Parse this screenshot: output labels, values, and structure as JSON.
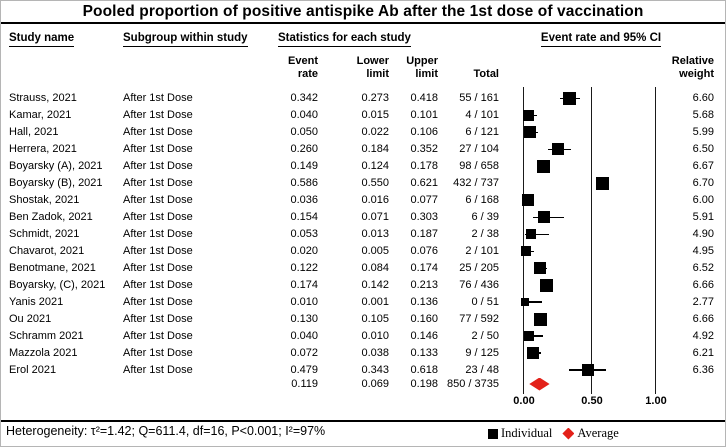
{
  "title": "Pooled proportion of positive antispike Ab after the 1st dose of vaccination",
  "columns": {
    "study": "Study name",
    "subgroup": "Subgroup within study",
    "stats": "Statistics for each study",
    "event_ci": "Event rate and 95% CI",
    "event_rate_header": "Event\nrate",
    "lower_limit_header": "Lower\nlimit",
    "upper_limit_header": "Upper\nlimit",
    "total_header": "Total",
    "relative_weight_header": "Relative\nweight"
  },
  "chart_data": {
    "type": "forest",
    "axis": {
      "labels": [
        "0.00",
        "0.50",
        "1.00"
      ],
      "ticks": [
        0.0,
        0.5,
        1.0
      ],
      "xlim": [
        -0.13,
        1.5
      ]
    },
    "legend": {
      "individual": "Individual",
      "average": "Average"
    },
    "studies": [
      {
        "name": "Strauss, 2021",
        "subgroup": "After 1st Dose",
        "event_rate": "0.342",
        "lower": "0.273",
        "upper": "0.418",
        "total": "55 / 161",
        "weight": "6.60"
      },
      {
        "name": "Kamar, 2021",
        "subgroup": "After 1st Dose",
        "event_rate": "0.040",
        "lower": "0.015",
        "upper": "0.101",
        "total": "4 / 101",
        "weight": "5.68"
      },
      {
        "name": "Hall, 2021",
        "subgroup": "After 1st Dose",
        "event_rate": "0.050",
        "lower": "0.022",
        "upper": "0.106",
        "total": "6 / 121",
        "weight": "5.99"
      },
      {
        "name": "Herrera, 2021",
        "subgroup": "After 1st Dose",
        "event_rate": "0.260",
        "lower": "0.184",
        "upper": "0.352",
        "total": "27 / 104",
        "weight": "6.50"
      },
      {
        "name": "Boyarsky (A), 2021",
        "subgroup": "After 1st Dose",
        "event_rate": "0.149",
        "lower": "0.124",
        "upper": "0.178",
        "total": "98 / 658",
        "weight": "6.67"
      },
      {
        "name": "Boyarsky (B), 2021",
        "subgroup": "After 1st Dose",
        "event_rate": "0.586",
        "lower": "0.550",
        "upper": "0.621",
        "total": "432 / 737",
        "weight": "6.70"
      },
      {
        "name": "Shostak, 2021",
        "subgroup": "After 1st Dose",
        "event_rate": "0.036",
        "lower": "0.016",
        "upper": "0.077",
        "total": "6 / 168",
        "weight": "6.00"
      },
      {
        "name": "Ben Zadok, 2021",
        "subgroup": "After 1st Dose",
        "event_rate": "0.154",
        "lower": "0.071",
        "upper": "0.303",
        "total": "6 / 39",
        "weight": "5.91"
      },
      {
        "name": "Schmidt, 2021",
        "subgroup": "After 1st Dose",
        "event_rate": "0.053",
        "lower": "0.013",
        "upper": "0.187",
        "total": "2 / 38",
        "weight": "4.90"
      },
      {
        "name": "Chavarot, 2021",
        "subgroup": "After 1st Dose",
        "event_rate": "0.020",
        "lower": "0.005",
        "upper": "0.076",
        "total": "2 / 101",
        "weight": "4.95"
      },
      {
        "name": "Benotmane, 2021",
        "subgroup": "After 1st Dose",
        "event_rate": "0.122",
        "lower": "0.084",
        "upper": "0.174",
        "total": "25 / 205",
        "weight": "6.52"
      },
      {
        "name": "Boyarsky, (C), 2021",
        "subgroup": "After 1st Dose",
        "event_rate": "0.174",
        "lower": "0.142",
        "upper": "0.213",
        "total": "76 / 436",
        "weight": "6.66"
      },
      {
        "name": "Yanis 2021",
        "subgroup": "After 1st Dose",
        "event_rate": "0.010",
        "lower": "0.001",
        "upper": "0.136",
        "total": "0 / 51",
        "weight": "2.77"
      },
      {
        "name": "Ou 2021",
        "subgroup": "After 1st Dose",
        "event_rate": "0.130",
        "lower": "0.105",
        "upper": "0.160",
        "total": "77 / 592",
        "weight": "6.66"
      },
      {
        "name": "Schramm 2021",
        "subgroup": "After 1st Dose",
        "event_rate": "0.040",
        "lower": "0.010",
        "upper": "0.146",
        "total": "2 / 50",
        "weight": "4.92"
      },
      {
        "name": "Mazzola 2021",
        "subgroup": "After 1st Dose",
        "event_rate": "0.072",
        "lower": "0.038",
        "upper": "0.133",
        "total": "9 / 125",
        "weight": "6.21"
      },
      {
        "name": "Erol 2021",
        "subgroup": "After 1st Dose",
        "event_rate": "0.479",
        "lower": "0.343",
        "upper": "0.618",
        "total": "23 / 48",
        "weight": "6.36"
      }
    ],
    "summary": {
      "event_rate": "0.119",
      "lower": "0.069",
      "upper": "0.198",
      "total": "850 / 3735"
    }
  },
  "footer": {
    "heterogeneity": "Heterogeneity: τ²=1.42; Q=611.4, df=16, P<0.001; I²=97%",
    "legend_individual": "Individual",
    "legend_average": "Average"
  },
  "colors": {
    "square": "#000000",
    "average_diamond": "#e32119"
  }
}
